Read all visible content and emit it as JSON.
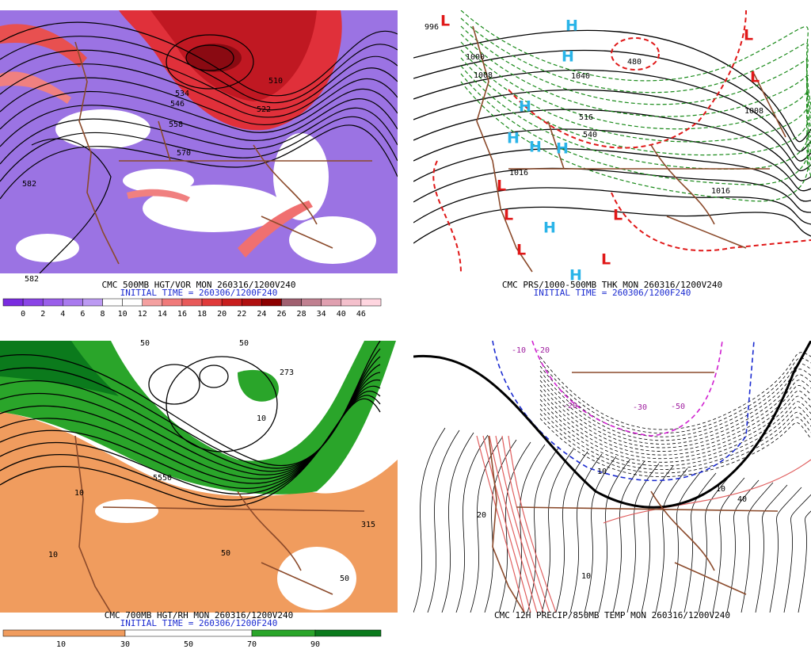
{
  "panels": [
    {
      "title": "CMC 500MB HGT/VOR MON 260316/1200V240",
      "subtitle": "INITIAL TIME = 260306/1200F240",
      "colorbar_labels": [
        0,
        2,
        4,
        6,
        8,
        10,
        12,
        14,
        16,
        18,
        20,
        22,
        24,
        26,
        28,
        34,
        40,
        46
      ],
      "contour_labels": [
        "510",
        "522",
        "534",
        "546",
        "558",
        "570",
        "582",
        "582"
      ]
    },
    {
      "title": "CMC PRS/1000-500MB THK MON 260316/1200V240",
      "subtitle": "INITIAL TIME = 260306/1200F240",
      "contour_labels": [
        "996",
        "1000",
        "1008",
        "1040",
        "480",
        "1016",
        "1016",
        "1008",
        "540",
        "516"
      ],
      "pressure_centers": [
        "L",
        "L",
        "L",
        "L",
        "L",
        "L",
        "L",
        "L",
        "H",
        "H",
        "H",
        "H",
        "H",
        "H",
        "H",
        "H"
      ]
    },
    {
      "title": "CMC 700MB HGT/RH MON 260316/1200V240",
      "subtitle": "INITIAL TIME = 260306/1200F240",
      "colorbar_labels": [
        10,
        30,
        50,
        70,
        90
      ],
      "contour_labels": [
        "50",
        "50",
        "273",
        "10",
        "10",
        "10",
        "50",
        "315",
        "50",
        "5550"
      ]
    },
    {
      "title": "CMC 12H PRECIP/850MB TEMP MON 260316/1200V240",
      "contour_labels": [
        "-10",
        "-20",
        "-20",
        "-30",
        "-50",
        "10",
        "20",
        "10",
        "40",
        "10"
      ]
    }
  ]
}
